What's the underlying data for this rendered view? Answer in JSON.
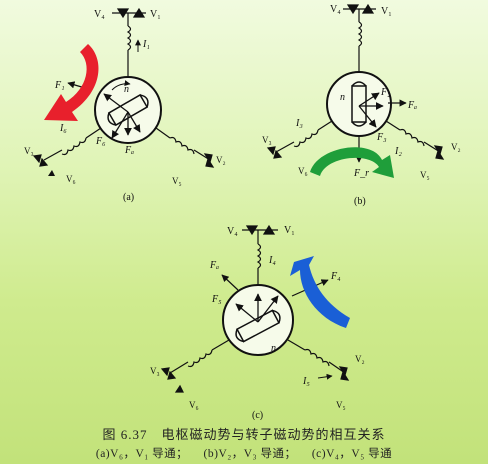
{
  "figure": {
    "title": "图 6.37　电枢磁动势与转子磁动势的相互关系",
    "cases": [
      "(a)V₆，V₁ 导通；",
      "(b)V₂，V₃ 导通；",
      "(c)V₄，V₅ 导通"
    ]
  },
  "panels": [
    {
      "label": "(a)",
      "thyristor_labels": [
        "V₄",
        "V₁",
        "V₃",
        "V₆",
        "V₅",
        "V₂"
      ],
      "currents": [
        "I₁",
        "I₆"
      ],
      "mmf_labels": [
        "F₁",
        "F₆",
        "Fₐ",
        "F_r",
        "n"
      ],
      "arrow_color": "#e8202c"
    },
    {
      "label": "(b)",
      "thyristor_labels": [
        "V₄",
        "V₁",
        "V₃",
        "V₆",
        "V₅",
        "V₂"
      ],
      "currents": [
        "I₃",
        "I₂"
      ],
      "mmf_labels": [
        "F₂",
        "F₃",
        "Fₐ",
        "F_r",
        "n"
      ],
      "arrow_color": "#1f9e3a"
    },
    {
      "label": "(c)",
      "thyristor_labels": [
        "V₄",
        "V₁",
        "V₃",
        "V₆",
        "V₂",
        "V₅"
      ],
      "currents": [
        "I₄",
        "I₅"
      ],
      "mmf_labels": [
        "Fₐ",
        "F₄",
        "F₅",
        "F_r",
        "n"
      ],
      "arrow_color": "#1a5fd6"
    }
  ]
}
